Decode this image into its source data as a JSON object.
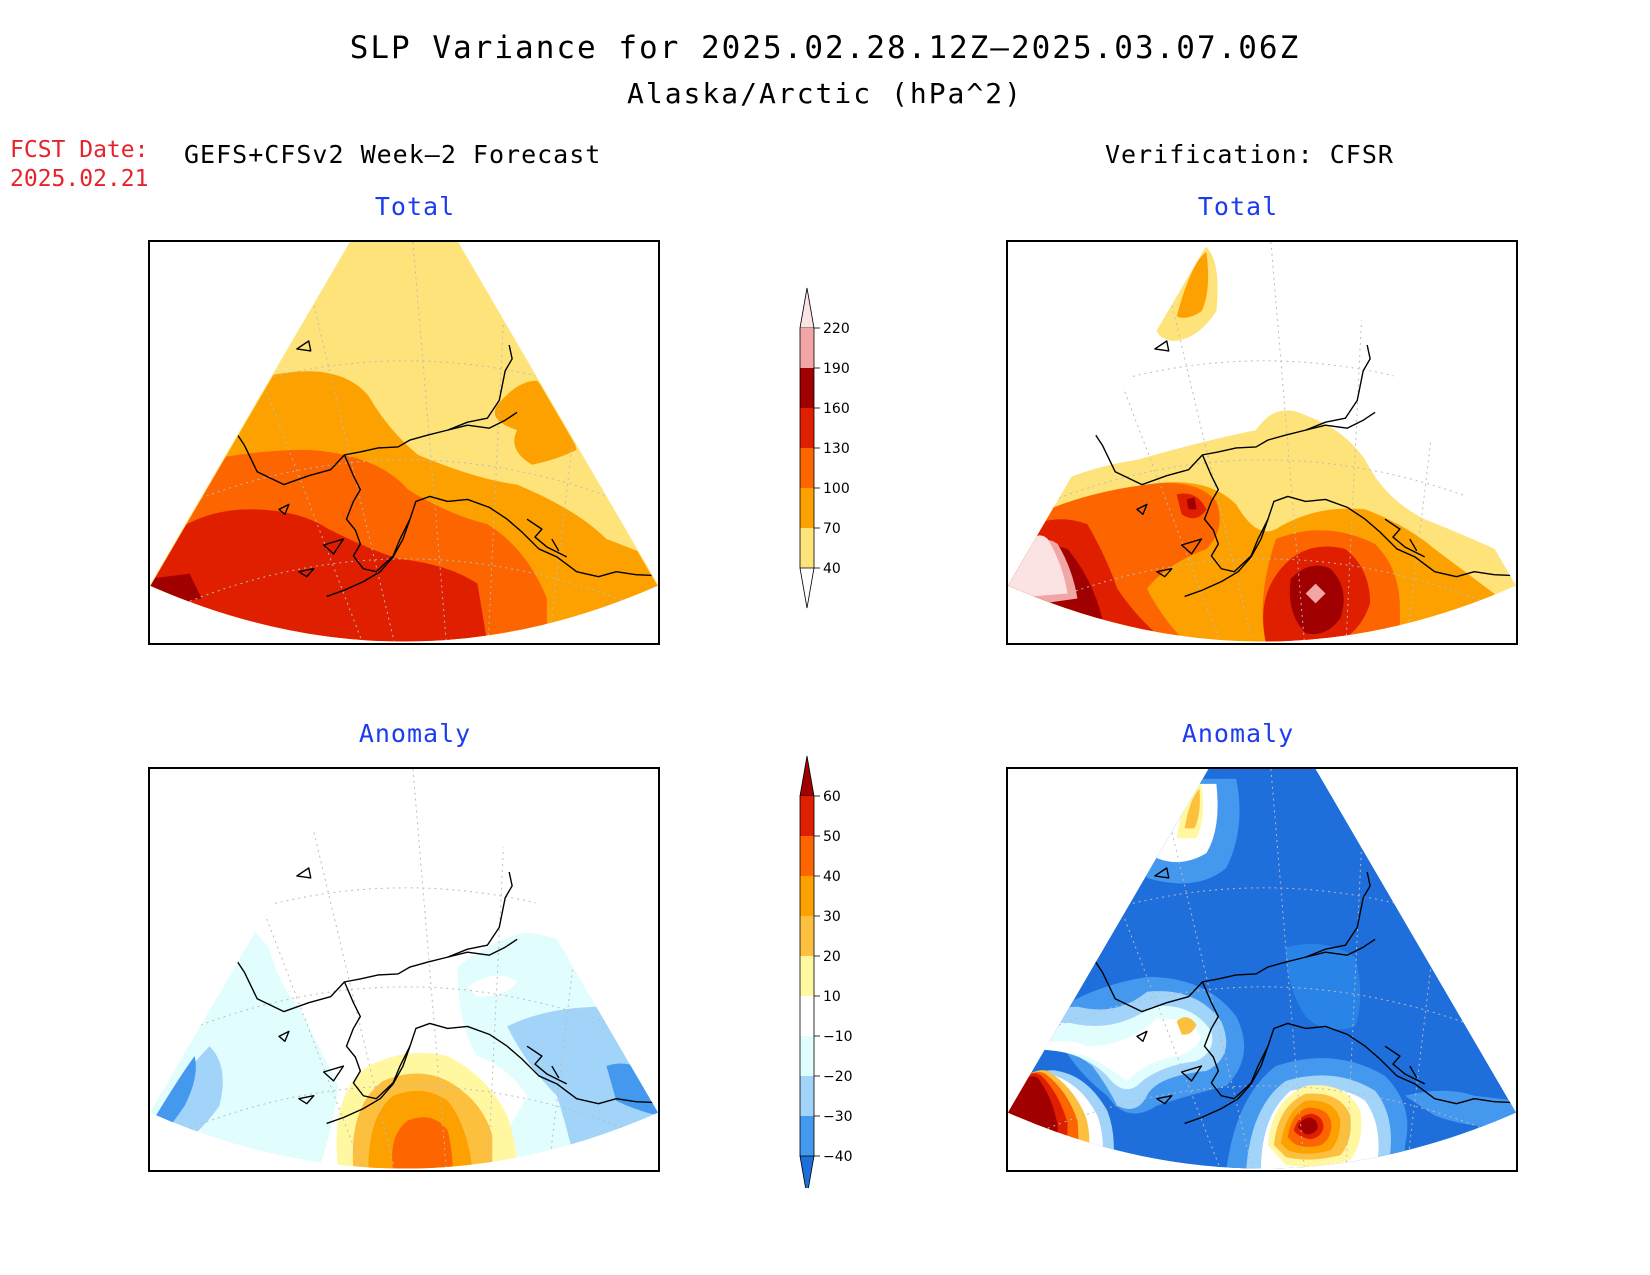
{
  "title": {
    "line1": "SLP Variance for 2025.02.28.12Z–2025.03.07.06Z",
    "line2": "Alaska/Arctic (hPa^2)"
  },
  "forecast_date": {
    "label": "FCST Date:",
    "value": "2025.02.21"
  },
  "columns": {
    "left": "GEFS+CFSv2 Week–2 Forecast",
    "right": "Verification: CFSR"
  },
  "panels": {
    "fcst_total": "Total",
    "verif_total": "Total",
    "fcst_anomaly": "Anomaly",
    "verif_anomaly": "Anomaly"
  },
  "colorbar_total": {
    "levels": [
      "220",
      "190",
      "160",
      "130",
      "100",
      "70",
      "40"
    ],
    "colors": [
      "#fbe3e3",
      "#f2a5a5",
      "#a10000",
      "#e01e00",
      "#fd6500",
      "#fda100",
      "#fde37a",
      "#ffffff"
    ]
  },
  "colorbar_anomaly": {
    "levels": [
      "60",
      "50",
      "40",
      "30",
      "20",
      "10",
      "−10",
      "−20",
      "−30",
      "−40"
    ],
    "colors": [
      "#a10000",
      "#e01e00",
      "#fd6500",
      "#fda100",
      "#fdbf3e",
      "#fff8a0",
      "#ffffff",
      "#e1fdfd",
      "#a2d3f9",
      "#4499ef",
      "#1e6fdc"
    ]
  },
  "map_colors": {
    "coast": "#000000",
    "grid": "#bbbbbb"
  }
}
